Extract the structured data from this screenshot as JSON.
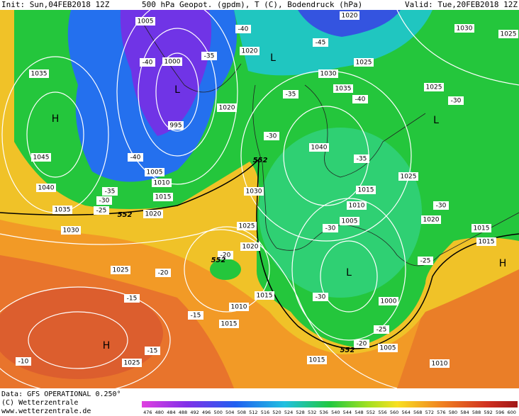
{
  "header": {
    "init": "Init: Sun,04FEB2018 12Z",
    "title": "500 hPa Geopot. (gpdm), T (C), Bodendruck (hPa)",
    "valid": "Valid: Tue,20FEB2018 12Z"
  },
  "map": {
    "pressure_labels": [
      "1005",
      "1000",
      "995",
      "1005",
      "1010",
      "1015",
      "1020",
      "1020",
      "1020",
      "1020",
      "1025",
      "1030",
      "1035",
      "1040",
      "1025",
      "1025",
      "1030",
      "1025",
      "1035",
      "1045",
      "1040",
      "1035",
      "1030",
      "1025",
      "1030",
      "1025",
      "1020",
      "1015",
      "1010",
      "1005",
      "1020",
      "1015",
      "1015",
      "1015",
      "1010",
      "1015",
      "1000",
      "1005",
      "1015",
      "1010",
      "1025"
    ],
    "temperature_labels": [
      "-40",
      "-45",
      "-40",
      "-35",
      "-35",
      "-40",
      "-30",
      "-30",
      "-40",
      "-35",
      "-35",
      "-30",
      "-25",
      "-30",
      "-30",
      "-25",
      "-20",
      "-20",
      "-15",
      "-15",
      "-15",
      "-20",
      "-25",
      "-30",
      "-10"
    ],
    "geopotential_labels": [
      "552",
      "552",
      "552",
      "552"
    ],
    "centers": [
      "H",
      "L",
      "L",
      "L",
      "L",
      "H",
      "H"
    ]
  },
  "footer": {
    "data": "Data: GFS OPERATIONAL 0.250°",
    "copyright": "(C) Wetterzentrale",
    "url": "www.wetterzentrale.de"
  },
  "scale": {
    "labels": [
      "476",
      "480",
      "484",
      "488",
      "492",
      "496",
      "500",
      "504",
      "508",
      "512",
      "516",
      "520",
      "524",
      "528",
      "532",
      "536",
      "540",
      "544",
      "548",
      "552",
      "556",
      "560",
      "564",
      "568",
      "572",
      "576",
      "580",
      "584",
      "588",
      "592",
      "596",
      "600"
    ]
  }
}
